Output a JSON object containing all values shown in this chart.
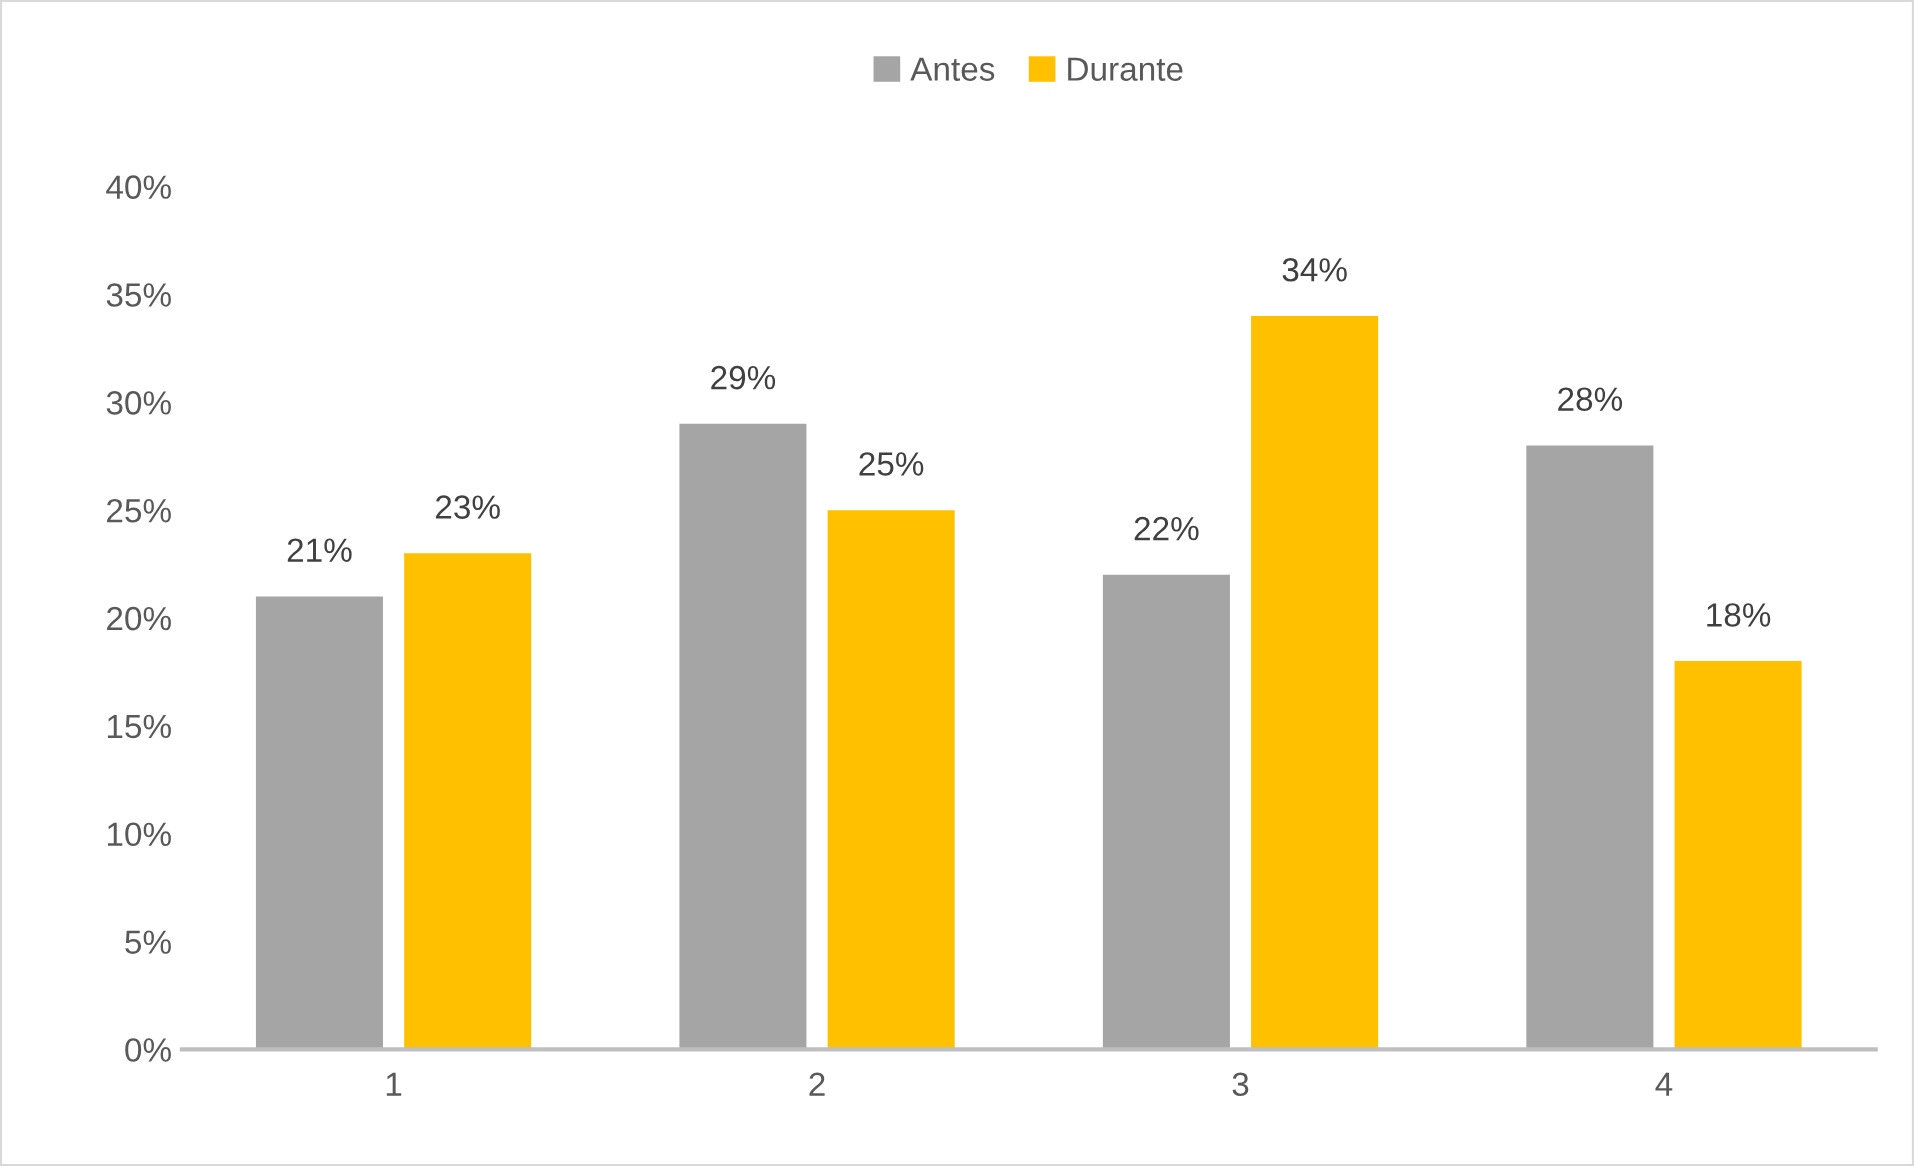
{
  "chart_data": {
    "type": "bar",
    "categories": [
      "1",
      "2",
      "3",
      "4"
    ],
    "series": [
      {
        "name": "Antes",
        "color": "#a5a5a5",
        "values": [
          21,
          29,
          22,
          28
        ],
        "value_labels": [
          "21%",
          "29%",
          "22%",
          "28%"
        ]
      },
      {
        "name": "Durante",
        "color": "#ffc000",
        "values": [
          23,
          25,
          34,
          18
        ],
        "value_labels": [
          "23%",
          "25%",
          "34%",
          "18%"
        ]
      }
    ],
    "ylim": [
      0,
      40
    ],
    "yticks": [
      {
        "value": 0,
        "label": "0%"
      },
      {
        "value": 5,
        "label": "5%"
      },
      {
        "value": 10,
        "label": "10%"
      },
      {
        "value": 15,
        "label": "15%"
      },
      {
        "value": 20,
        "label": "20%"
      },
      {
        "value": 25,
        "label": "25%"
      },
      {
        "value": 30,
        "label": "30%"
      },
      {
        "value": 35,
        "label": "35%"
      },
      {
        "value": 40,
        "label": "40%"
      }
    ],
    "grid": false,
    "legend": "top"
  }
}
